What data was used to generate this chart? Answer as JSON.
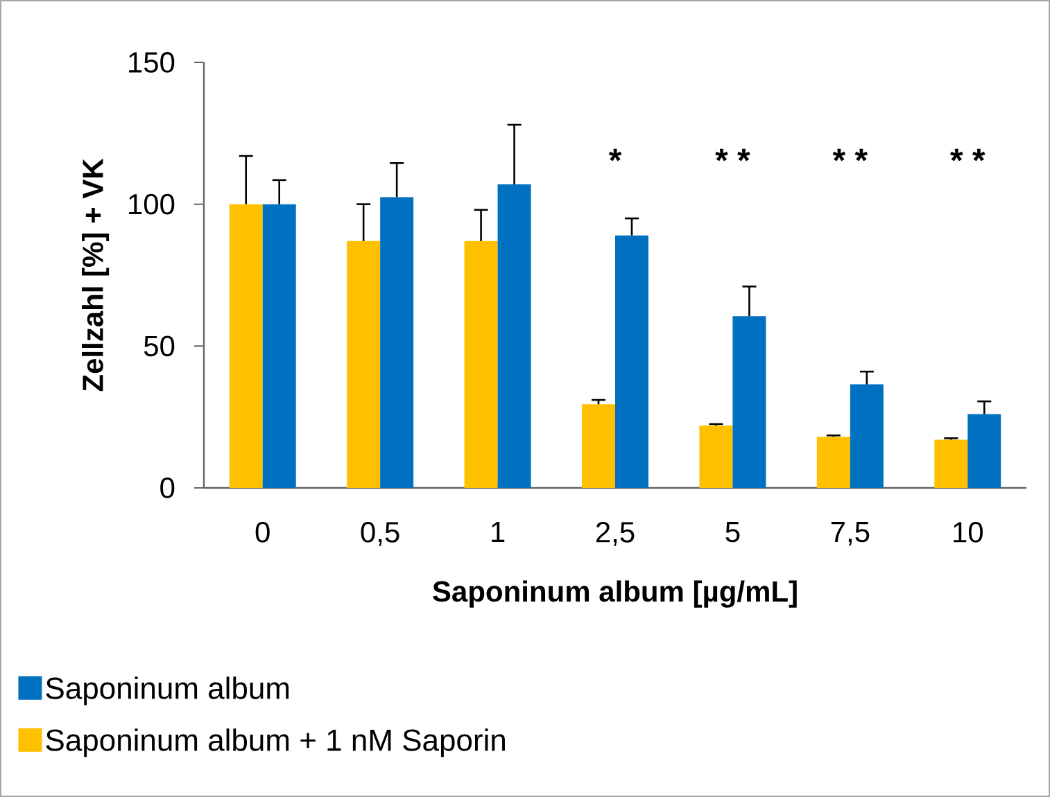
{
  "chart_data": {
    "type": "bar",
    "xlabel": "Saponinum album [µg/mL]",
    "ylabel": "Zellzahl [%] + VK",
    "categories": [
      "0",
      "0,5",
      "1",
      "2,5",
      "5",
      "7,5",
      "10"
    ],
    "series": [
      {
        "name": "Saponinum album + 1 nM Saporin",
        "color": "#ffc000",
        "values": [
          100,
          87,
          87,
          29.5,
          22,
          18,
          17
        ],
        "errors": [
          [
            100,
            117
          ],
          [
            87,
            100
          ],
          [
            87,
            98
          ],
          [
            29.5,
            31
          ],
          [
            22,
            22.5
          ],
          [
            18,
            18.5
          ],
          [
            17,
            17.5
          ]
        ]
      },
      {
        "name": "Saponinum album",
        "color": "#0070c0",
        "values": [
          100,
          102.5,
          107,
          89,
          60.5,
          36.5,
          26
        ],
        "errors": [
          [
            100,
            108.5
          ],
          [
            102.5,
            114.5
          ],
          [
            107,
            128
          ],
          [
            89,
            95
          ],
          [
            60.5,
            71
          ],
          [
            36.5,
            41
          ],
          [
            26,
            30.5
          ]
        ]
      }
    ],
    "ylim": [
      0,
      150
    ],
    "yticks": [
      0,
      50,
      100,
      150
    ],
    "legend": "bottom",
    "grid": false,
    "annotations": [
      "*",
      "* *",
      "* *",
      "* *"
    ]
  }
}
